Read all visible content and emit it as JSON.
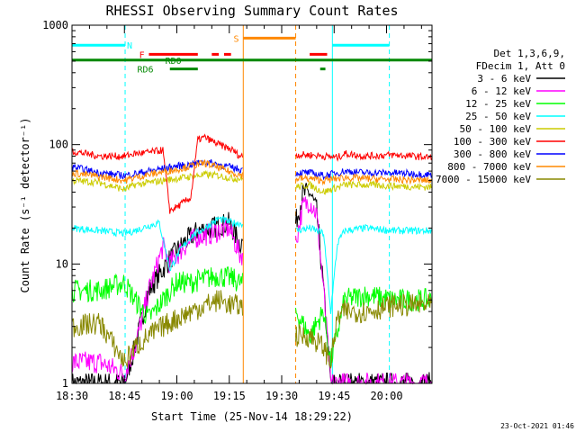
{
  "chart_data": {
    "type": "line",
    "title": "RHESSI Observing Summary Count Rates",
    "xlabel": "Start Time (25-Nov-14 18:29:22)",
    "ylabel": "Count Rate (s⁻¹ detector⁻¹)",
    "yscale": "log",
    "ylim": [
      1,
      1000
    ],
    "xlim_minutes": [
      0,
      103
    ],
    "x_ticks": [
      "18:30",
      "18:45",
      "19:00",
      "19:15",
      "19:30",
      "19:45",
      "20:00"
    ],
    "x_tick_minutes": [
      0,
      15,
      30,
      45,
      60,
      75,
      90
    ],
    "y_ticks": [
      "1",
      "10",
      "100",
      "1000"
    ],
    "y_tick_values": [
      1,
      10,
      100,
      1000
    ],
    "footer_timestamp": "23-Oct-2021 01:46",
    "legend": {
      "placement": "right",
      "header": [
        "Det 1,3,6,9,",
        "FDecim 1, Att 0"
      ]
    },
    "data_gap": [
      49,
      64
    ],
    "series": [
      {
        "name": "3 - 6 keV",
        "color": "#000000",
        "x": [
          0,
          8,
          15,
          18,
          22,
          26,
          28,
          32,
          36,
          40,
          42,
          45,
          48,
          64,
          66,
          68,
          70,
          72,
          74,
          76,
          78,
          103
        ],
        "y": [
          1,
          1,
          1,
          2,
          6,
          9,
          11,
          15,
          19,
          20,
          21,
          22,
          15,
          22,
          38,
          40,
          28,
          6,
          1,
          1,
          1,
          1
        ]
      },
      {
        "name": "6 - 12 keV",
        "color": "#ff00ff",
        "x": [
          0,
          8,
          15,
          18,
          22,
          24,
          26,
          28,
          32,
          36,
          40,
          42,
          45,
          48,
          64,
          66,
          68,
          70,
          72,
          74,
          76,
          78,
          103
        ],
        "y": [
          1.5,
          1.5,
          1.2,
          2,
          6,
          9,
          14,
          10,
          14,
          17,
          18,
          19,
          20,
          12,
          15,
          30,
          34,
          26,
          6,
          1,
          1,
          1,
          1
        ]
      },
      {
        "name": "12 - 25 keV",
        "color": "#00ff00",
        "x": [
          0,
          8,
          15,
          18,
          22,
          26,
          30,
          34,
          38,
          42,
          46,
          48,
          64,
          68,
          72,
          74,
          78,
          84,
          92,
          103
        ],
        "y": [
          6,
          6,
          7,
          5,
          3.5,
          5,
          7,
          7,
          7.5,
          8,
          7.5,
          7,
          4,
          2.5,
          4,
          1.5,
          5,
          5.5,
          5,
          5
        ]
      },
      {
        "name": "25 - 50 keV",
        "color": "#00ffff",
        "x": [
          0,
          8,
          15,
          18,
          22,
          25,
          28,
          31,
          34,
          38,
          42,
          46,
          48,
          64,
          68,
          72,
          74,
          76,
          78,
          84,
          92,
          103
        ],
        "y": [
          20,
          19,
          18,
          19,
          21,
          22,
          9,
          13,
          17,
          20,
          24,
          22,
          22,
          19,
          20,
          18,
          4,
          15,
          19,
          20,
          19,
          19
        ]
      },
      {
        "name": "50 - 100 keV",
        "color": "#cccc00",
        "x": [
          0,
          8,
          15,
          18,
          22,
          26,
          30,
          34,
          38,
          42,
          46,
          48,
          64,
          68,
          72,
          76,
          78,
          84,
          92,
          103
        ],
        "y": [
          50,
          48,
          42,
          46,
          48,
          50,
          52,
          54,
          56,
          55,
          52,
          52,
          44,
          46,
          40,
          44,
          46,
          46,
          45,
          44
        ]
      },
      {
        "name": "100 - 300 keV",
        "color": "#ff0000",
        "x": [
          0,
          8,
          15,
          18,
          22,
          26,
          28,
          30,
          34,
          36,
          38,
          42,
          46,
          48,
          64,
          68,
          72,
          76,
          78,
          84,
          92,
          103
        ],
        "y": [
          88,
          80,
          80,
          84,
          86,
          90,
          28,
          30,
          36,
          110,
          115,
          100,
          90,
          80,
          82,
          82,
          80,
          78,
          84,
          80,
          82,
          78
        ]
      },
      {
        "name": "300 - 800 keV",
        "color": "#0000ff",
        "x": [
          0,
          8,
          15,
          18,
          22,
          26,
          30,
          34,
          38,
          42,
          46,
          48,
          64,
          68,
          72,
          76,
          78,
          84,
          92,
          103
        ],
        "y": [
          65,
          58,
          55,
          57,
          60,
          63,
          66,
          68,
          72,
          68,
          64,
          62,
          58,
          58,
          55,
          58,
          60,
          58,
          58,
          56
        ]
      },
      {
        "name": "800 - 7000 keV",
        "color": "#ff8800",
        "x": [
          0,
          8,
          15,
          18,
          22,
          26,
          30,
          34,
          38,
          42,
          46,
          48,
          64,
          68,
          72,
          76,
          78,
          84,
          92,
          103
        ],
        "y": [
          58,
          54,
          50,
          53,
          56,
          59,
          62,
          66,
          70,
          64,
          58,
          56,
          52,
          52,
          50,
          52,
          53,
          52,
          51,
          50
        ]
      },
      {
        "name": "7000 - 15000 keV",
        "color": "#888800",
        "x": [
          0,
          8,
          15,
          18,
          22,
          26,
          30,
          34,
          38,
          42,
          46,
          48,
          64,
          68,
          72,
          74,
          76,
          78,
          84,
          92,
          103
        ],
        "y": [
          3,
          3.2,
          1.5,
          2,
          2.5,
          3,
          3.5,
          4,
          4.5,
          5,
          4.5,
          4.5,
          2.5,
          2.5,
          2,
          1.5,
          3.5,
          4,
          4,
          4.5,
          4.5
        ]
      }
    ],
    "vertical_markers": [
      {
        "minute": 0,
        "color": "#00ffff",
        "style": "solid"
      },
      {
        "minute": 15.2,
        "color": "#00ffff",
        "style": "dashed"
      },
      {
        "minute": 49,
        "color": "#ff8800",
        "style": "solid"
      },
      {
        "minute": 64,
        "color": "#ff8800",
        "style": "dashed"
      },
      {
        "minute": 74.5,
        "color": "#00ffff",
        "style": "solid"
      },
      {
        "minute": 90.8,
        "color": "#00ffff",
        "style": "dashed"
      }
    ],
    "flag_bars": [
      {
        "label": "N",
        "color": "#00ffff",
        "level": 680,
        "segments": [
          [
            0,
            15.2
          ],
          [
            74.5,
            90.8
          ]
        ],
        "label_minute": 16.5
      },
      {
        "label": "S",
        "color": "#ff8800",
        "level": 780,
        "segments": [
          [
            49,
            64
          ]
        ],
        "label_minute": 47
      },
      {
        "label": "F",
        "color": "#ff0000",
        "level": 570,
        "segments": [
          [
            22,
            36
          ],
          [
            40,
            42
          ],
          [
            43.5,
            45.5
          ],
          [
            68,
            73
          ]
        ],
        "label_minute": 20
      },
      {
        "label": "RD0",
        "color": "#008800",
        "level": 510,
        "segments": [
          [
            0,
            103
          ]
        ],
        "label_minute": 29
      },
      {
        "label": "RD6",
        "color": "#008800",
        "level": 430,
        "segments": [
          [
            28,
            36
          ],
          [
            71,
            72.5
          ]
        ],
        "label_minute": 21
      }
    ]
  }
}
